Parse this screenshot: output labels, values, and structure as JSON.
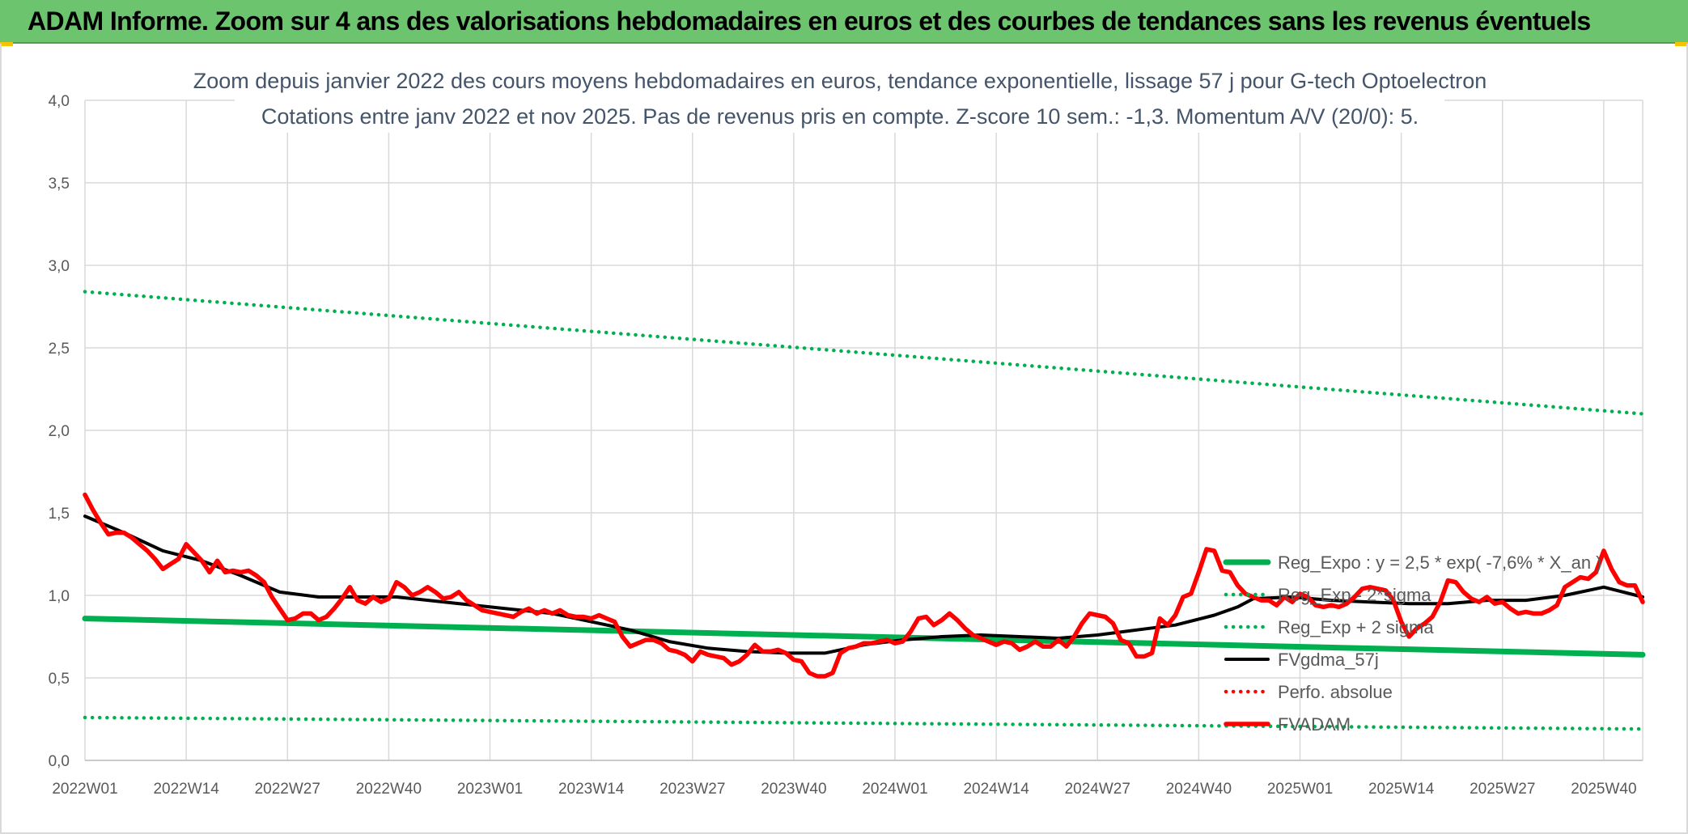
{
  "header": {
    "banner_title": "ADAM Informe. Zoom sur 4 ans des valorisations hebdomadaires en euros et des courbes de tendances sans les revenus éventuels"
  },
  "colors": {
    "banner_bg": "#6cc46e",
    "green": "#00b050",
    "red": "#ff0000",
    "black": "#000000",
    "grid": "#d9d9d9",
    "title": "#44546a",
    "axis_text": "#595959"
  },
  "chart_data": {
    "type": "line",
    "title": "Zoom depuis janvier 2022 des cours moyens hebdomadaires en euros, tendance exponentielle, lissage 57 j pour G-tech Optoelectron",
    "subtitle": "Cotations entre janv 2022 et nov 2025. Pas de revenus pris en compte. Z-score 10 sem.: -1,3. Momentum A/V (20/0): 5.",
    "xlabel": "",
    "ylabel": "",
    "ylim": [
      0,
      4
    ],
    "ytick_values": [
      0,
      0.5,
      1,
      1.5,
      2,
      2.5,
      3,
      3.5,
      4
    ],
    "ytick_labels": [
      "0,0",
      "0,5",
      "1,0",
      "1,5",
      "2,0",
      "2,5",
      "3,0",
      "3,5",
      "4,0"
    ],
    "x_count": 201,
    "xtick_positions": [
      0,
      13,
      26,
      39,
      52,
      65,
      78,
      91,
      104,
      117,
      130,
      143,
      156,
      169,
      182,
      195
    ],
    "xtick_labels": [
      "2022W01",
      "2022W14",
      "2022W27",
      "2022W40",
      "2023W01",
      "2023W14",
      "2023W27",
      "2023W40",
      "2024W01",
      "2024W14",
      "2024W27",
      "2024W40",
      "2025W01",
      "2025W14",
      "2025W27",
      "2025W40"
    ],
    "grid": true,
    "legend_position": "bottom-right",
    "series": [
      {
        "name": "Reg_Expo : y = 2,5 * exp( -7,6% *  X_an )",
        "style": "solid-thick",
        "color": "#00b050",
        "points": [
          [
            0,
            0.86
          ],
          [
            200,
            0.64
          ]
        ]
      },
      {
        "name": "Reg_Exp - 2*sigma",
        "style": "dotted",
        "color": "#00b050",
        "points": [
          [
            0,
            0.26
          ],
          [
            200,
            0.19
          ]
        ]
      },
      {
        "name": "Reg_Exp + 2 sigma",
        "style": "dotted",
        "color": "#00b050",
        "points": [
          [
            0,
            2.84
          ],
          [
            200,
            2.1
          ]
        ]
      },
      {
        "name": "FVgdma_57j",
        "style": "solid",
        "color": "#000000",
        "points": [
          [
            0,
            1.48
          ],
          [
            5,
            1.38
          ],
          [
            10,
            1.27
          ],
          [
            15,
            1.21
          ],
          [
            20,
            1.12
          ],
          [
            25,
            1.02
          ],
          [
            30,
            0.99
          ],
          [
            40,
            0.99
          ],
          [
            50,
            0.94
          ],
          [
            60,
            0.89
          ],
          [
            65,
            0.84
          ],
          [
            70,
            0.79
          ],
          [
            75,
            0.72
          ],
          [
            80,
            0.68
          ],
          [
            85,
            0.66
          ],
          [
            90,
            0.65
          ],
          [
            95,
            0.65
          ],
          [
            100,
            0.7
          ],
          [
            105,
            0.73
          ],
          [
            110,
            0.75
          ],
          [
            115,
            0.76
          ],
          [
            120,
            0.75
          ],
          [
            125,
            0.74
          ],
          [
            130,
            0.76
          ],
          [
            135,
            0.79
          ],
          [
            140,
            0.82
          ],
          [
            145,
            0.88
          ],
          [
            148,
            0.93
          ],
          [
            150,
            0.98
          ],
          [
            155,
            0.99
          ],
          [
            160,
            0.97
          ],
          [
            165,
            0.96
          ],
          [
            170,
            0.95
          ],
          [
            175,
            0.95
          ],
          [
            180,
            0.97
          ],
          [
            185,
            0.97
          ],
          [
            190,
            1.0
          ],
          [
            195,
            1.05
          ],
          [
            200,
            0.99
          ]
        ]
      },
      {
        "name": "Perfo. absolue",
        "style": "dotted",
        "color": "#ff0000",
        "points": []
      },
      {
        "name": "FVADAM",
        "style": "solid-thick",
        "color": "#ff0000",
        "points": [
          [
            0,
            1.61
          ],
          [
            1,
            1.52
          ],
          [
            2,
            1.44
          ],
          [
            3,
            1.37
          ],
          [
            4,
            1.38
          ],
          [
            5,
            1.38
          ],
          [
            6,
            1.35
          ],
          [
            7,
            1.31
          ],
          [
            8,
            1.27
          ],
          [
            9,
            1.22
          ],
          [
            10,
            1.16
          ],
          [
            11,
            1.19
          ],
          [
            12,
            1.22
          ],
          [
            13,
            1.31
          ],
          [
            14,
            1.26
          ],
          [
            15,
            1.21
          ],
          [
            16,
            1.14
          ],
          [
            17,
            1.21
          ],
          [
            18,
            1.14
          ],
          [
            19,
            1.15
          ],
          [
            20,
            1.14
          ],
          [
            21,
            1.15
          ],
          [
            22,
            1.12
          ],
          [
            23,
            1.08
          ],
          [
            24,
            0.99
          ],
          [
            25,
            0.92
          ],
          [
            26,
            0.85
          ],
          [
            27,
            0.86
          ],
          [
            28,
            0.89
          ],
          [
            29,
            0.89
          ],
          [
            30,
            0.85
          ],
          [
            31,
            0.87
          ],
          [
            32,
            0.92
          ],
          [
            33,
            0.98
          ],
          [
            34,
            1.05
          ],
          [
            35,
            0.97
          ],
          [
            36,
            0.95
          ],
          [
            37,
            0.99
          ],
          [
            38,
            0.96
          ],
          [
            39,
            0.98
          ],
          [
            40,
            1.08
          ],
          [
            41,
            1.05
          ],
          [
            42,
            1.0
          ],
          [
            43,
            1.02
          ],
          [
            44,
            1.05
          ],
          [
            45,
            1.02
          ],
          [
            46,
            0.98
          ],
          [
            47,
            0.99
          ],
          [
            48,
            1.02
          ],
          [
            49,
            0.97
          ],
          [
            50,
            0.94
          ],
          [
            51,
            0.91
          ],
          [
            52,
            0.9
          ],
          [
            53,
            0.89
          ],
          [
            54,
            0.88
          ],
          [
            55,
            0.87
          ],
          [
            56,
            0.9
          ],
          [
            57,
            0.92
          ],
          [
            58,
            0.89
          ],
          [
            59,
            0.91
          ],
          [
            60,
            0.89
          ],
          [
            61,
            0.91
          ],
          [
            62,
            0.88
          ],
          [
            63,
            0.87
          ],
          [
            64,
            0.87
          ],
          [
            65,
            0.86
          ],
          [
            66,
            0.88
          ],
          [
            67,
            0.86
          ],
          [
            68,
            0.84
          ],
          [
            69,
            0.75
          ],
          [
            70,
            0.69
          ],
          [
            71,
            0.71
          ],
          [
            72,
            0.73
          ],
          [
            73,
            0.73
          ],
          [
            74,
            0.71
          ],
          [
            75,
            0.67
          ],
          [
            76,
            0.66
          ],
          [
            77,
            0.64
          ],
          [
            78,
            0.6
          ],
          [
            79,
            0.66
          ],
          [
            80,
            0.64
          ],
          [
            81,
            0.63
          ],
          [
            82,
            0.62
          ],
          [
            83,
            0.58
          ],
          [
            84,
            0.6
          ],
          [
            85,
            0.64
          ],
          [
            86,
            0.7
          ],
          [
            87,
            0.66
          ],
          [
            88,
            0.66
          ],
          [
            89,
            0.67
          ],
          [
            90,
            0.65
          ],
          [
            91,
            0.61
          ],
          [
            92,
            0.6
          ],
          [
            93,
            0.53
          ],
          [
            94,
            0.51
          ],
          [
            95,
            0.51
          ],
          [
            96,
            0.53
          ],
          [
            97,
            0.65
          ],
          [
            98,
            0.68
          ],
          [
            99,
            0.69
          ],
          [
            100,
            0.71
          ],
          [
            101,
            0.71
          ],
          [
            102,
            0.72
          ],
          [
            103,
            0.73
          ],
          [
            104,
            0.71
          ],
          [
            105,
            0.72
          ],
          [
            106,
            0.78
          ],
          [
            107,
            0.86
          ],
          [
            108,
            0.87
          ],
          [
            109,
            0.82
          ],
          [
            110,
            0.85
          ],
          [
            111,
            0.89
          ],
          [
            112,
            0.85
          ],
          [
            113,
            0.8
          ],
          [
            114,
            0.76
          ],
          [
            115,
            0.74
          ],
          [
            116,
            0.72
          ],
          [
            117,
            0.7
          ],
          [
            118,
            0.72
          ],
          [
            119,
            0.71
          ],
          [
            120,
            0.67
          ],
          [
            121,
            0.69
          ],
          [
            122,
            0.72
          ],
          [
            123,
            0.69
          ],
          [
            124,
            0.69
          ],
          [
            125,
            0.73
          ],
          [
            126,
            0.69
          ],
          [
            127,
            0.75
          ],
          [
            128,
            0.83
          ],
          [
            129,
            0.89
          ],
          [
            130,
            0.88
          ],
          [
            131,
            0.87
          ],
          [
            132,
            0.83
          ],
          [
            133,
            0.73
          ],
          [
            134,
            0.71
          ],
          [
            135,
            0.63
          ],
          [
            136,
            0.63
          ],
          [
            137,
            0.65
          ],
          [
            138,
            0.86
          ],
          [
            139,
            0.82
          ],
          [
            140,
            0.88
          ],
          [
            141,
            0.99
          ],
          [
            142,
            1.01
          ],
          [
            143,
            1.14
          ],
          [
            144,
            1.28
          ],
          [
            145,
            1.27
          ],
          [
            146,
            1.15
          ],
          [
            147,
            1.14
          ],
          [
            148,
            1.06
          ],
          [
            149,
            1.01
          ],
          [
            150,
            0.99
          ],
          [
            151,
            0.97
          ],
          [
            152,
            0.97
          ],
          [
            153,
            0.94
          ],
          [
            154,
            0.99
          ],
          [
            155,
            0.96
          ],
          [
            156,
            1.01
          ],
          [
            157,
            0.99
          ],
          [
            158,
            0.94
          ],
          [
            159,
            0.93
          ],
          [
            160,
            0.94
          ],
          [
            161,
            0.93
          ],
          [
            162,
            0.95
          ],
          [
            163,
            0.99
          ],
          [
            164,
            1.04
          ],
          [
            165,
            1.05
          ],
          [
            166,
            1.04
          ],
          [
            167,
            1.03
          ],
          [
            168,
            0.97
          ],
          [
            169,
            0.84
          ],
          [
            170,
            0.75
          ],
          [
            171,
            0.8
          ],
          [
            172,
            0.83
          ],
          [
            173,
            0.87
          ],
          [
            174,
            0.96
          ],
          [
            175,
            1.09
          ],
          [
            176,
            1.08
          ],
          [
            177,
            1.02
          ],
          [
            178,
            0.98
          ],
          [
            179,
            0.96
          ],
          [
            180,
            0.99
          ],
          [
            181,
            0.95
          ],
          [
            182,
            0.96
          ],
          [
            183,
            0.92
          ],
          [
            184,
            0.89
          ],
          [
            185,
            0.9
          ],
          [
            186,
            0.89
          ],
          [
            187,
            0.89
          ],
          [
            188,
            0.91
          ],
          [
            189,
            0.94
          ],
          [
            190,
            1.05
          ],
          [
            191,
            1.08
          ],
          [
            192,
            1.11
          ],
          [
            193,
            1.1
          ],
          [
            194,
            1.14
          ],
          [
            195,
            1.27
          ],
          [
            196,
            1.16
          ],
          [
            197,
            1.08
          ],
          [
            198,
            1.06
          ],
          [
            199,
            1.06
          ],
          [
            200,
            0.96
          ]
        ]
      }
    ]
  }
}
